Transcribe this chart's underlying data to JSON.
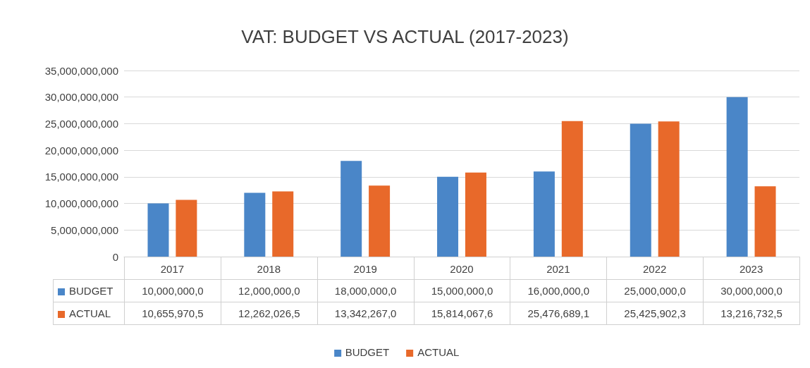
{
  "chart_data": {
    "type": "bar",
    "title": "VAT: BUDGET VS ACTUAL (2017-2023)",
    "categories": [
      "2017",
      "2018",
      "2019",
      "2020",
      "2021",
      "2022",
      "2023"
    ],
    "series": [
      {
        "name": "BUDGET",
        "color": "#4a86c8",
        "values": [
          10000000000,
          12000000000,
          18000000000,
          15000000000,
          16000000000,
          25000000000,
          30000000000
        ],
        "value_labels": [
          "10,000,000,0",
          "12,000,000,0",
          "18,000,000,0",
          "15,000,000,0",
          "16,000,000,0",
          "25,000,000,0",
          "30,000,000,0"
        ]
      },
      {
        "name": "ACTUAL",
        "color": "#e8692a",
        "values": [
          10655970500,
          12262026500,
          13342267000,
          15814067600,
          25476689100,
          25425902300,
          13216732500
        ],
        "value_labels": [
          "10,655,970,5",
          "12,262,026,5",
          "13,342,267,0",
          "15,814,067,6",
          "25,476,689,1",
          "25,425,902,3",
          "13,216,732,5"
        ]
      }
    ],
    "ylim": [
      0,
      35000000000
    ],
    "yticks": [
      0,
      {
        "value": 5000000000,
        "label": "5,000,000,000"
      },
      {
        "value": 10000000000,
        "label": "10,000,000,000"
      },
      {
        "value": 15000000000,
        "label": "15,000,000,000"
      },
      {
        "value": 20000000000,
        "label": "20,000,000,000"
      },
      {
        "value": 25000000000,
        "label": "25,000,000,000"
      },
      {
        "value": 30000000000,
        "label": "30,000,000,000"
      },
      {
        "value": 35000000000,
        "label": "35,000,000,000"
      }
    ],
    "grid": "y",
    "legend": "bottom"
  }
}
